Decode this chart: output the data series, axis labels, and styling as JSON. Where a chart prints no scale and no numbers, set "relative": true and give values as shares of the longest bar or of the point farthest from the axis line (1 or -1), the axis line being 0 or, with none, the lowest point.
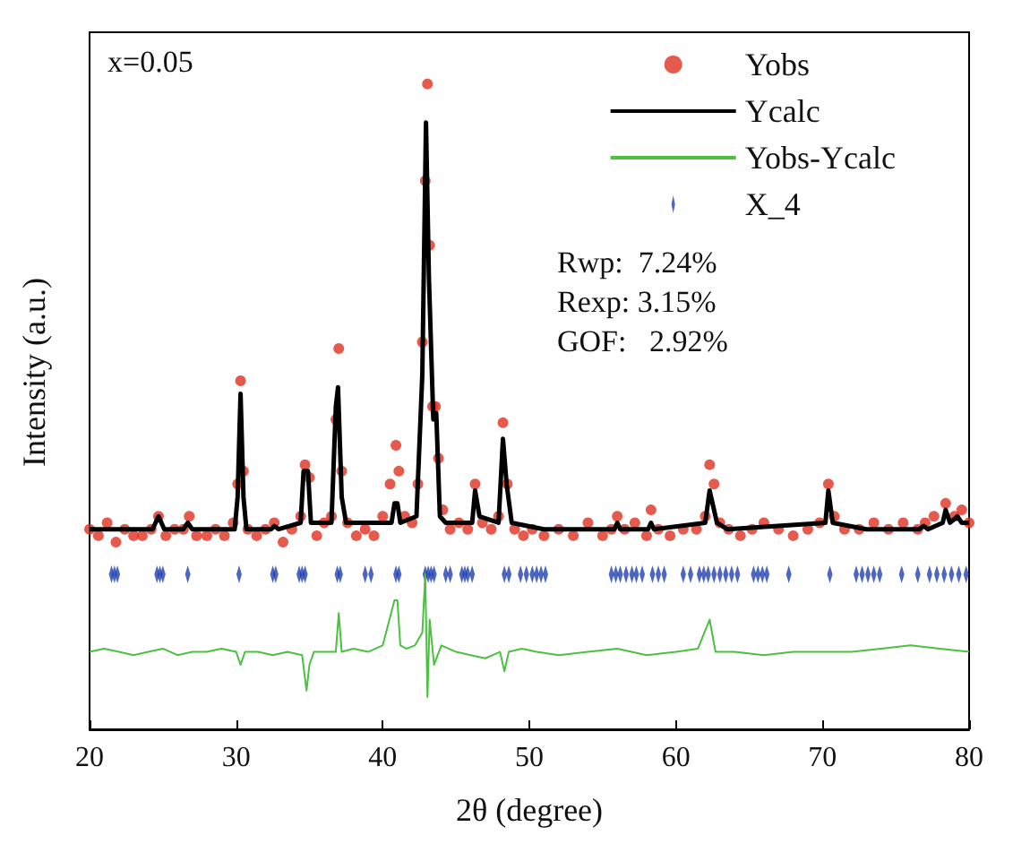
{
  "chart_data": {
    "type": "line",
    "relative": true,
    "xlabel": "2θ (degree)",
    "ylabel": "Intensity (a.u.)",
    "xlim": [
      20,
      80
    ],
    "xticks": [
      20,
      30,
      40,
      50,
      60,
      70,
      80
    ],
    "legend": "top right",
    "grid": false,
    "annotations": [
      "x=0.05",
      "Rwp:  7.24%",
      "Rexp: 3.15%",
      "GOF:   2.92%"
    ],
    "series": [
      {
        "name": "Yobs",
        "type": "scatter",
        "marker": "circle",
        "color": "#e03020",
        "x": [
          20,
          20.6,
          21.2,
          21.8,
          22.4,
          23,
          23.6,
          24.2,
          24.7,
          25.2,
          25.8,
          26.4,
          26.8,
          27.3,
          28,
          28.6,
          29.2,
          29.8,
          30.1,
          30.3,
          30.5,
          30.8,
          31.4,
          32,
          32.6,
          33.2,
          33.8,
          34.4,
          34.7,
          35,
          35.5,
          36,
          36.5,
          36.8,
          37,
          37.2,
          37.6,
          38.2,
          38.8,
          39.4,
          40,
          40.5,
          40.9,
          41.1,
          41.5,
          42,
          42.4,
          42.7,
          42.9,
          43.05,
          43.2,
          43.4,
          43.6,
          43.8,
          44.1,
          44.6,
          45.2,
          45.8,
          46.3,
          46.8,
          47.4,
          47.9,
          48.2,
          48.5,
          49,
          49.6,
          50.2,
          51,
          52,
          53,
          54,
          55,
          55.6,
          56,
          56.5,
          57.2,
          58,
          58.3,
          58.8,
          59.6,
          60.5,
          61.4,
          62,
          62.3,
          62.6,
          63,
          63.6,
          64.4,
          65.2,
          66,
          67,
          68,
          69,
          69.8,
          70.4,
          70.8,
          71.5,
          72.5,
          73.5,
          74.5,
          75.5,
          76.5,
          77,
          77.6,
          78.4,
          79,
          79.5,
          80
        ],
        "values": [
          0.31,
          0.3,
          0.32,
          0.29,
          0.31,
          0.3,
          0.3,
          0.31,
          0.33,
          0.3,
          0.31,
          0.31,
          0.33,
          0.3,
          0.3,
          0.31,
          0.3,
          0.32,
          0.38,
          0.54,
          0.4,
          0.31,
          0.3,
          0.31,
          0.32,
          0.29,
          0.31,
          0.33,
          0.41,
          0.39,
          0.3,
          0.32,
          0.33,
          0.48,
          0.59,
          0.4,
          0.32,
          0.3,
          0.31,
          0.3,
          0.33,
          0.38,
          0.44,
          0.4,
          0.33,
          0.32,
          0.38,
          0.6,
          0.85,
          1.0,
          0.75,
          0.5,
          0.5,
          0.42,
          0.34,
          0.31,
          0.32,
          0.31,
          0.38,
          0.32,
          0.31,
          0.33,
          0.475,
          0.38,
          0.31,
          0.3,
          0.31,
          0.3,
          0.31,
          0.3,
          0.32,
          0.3,
          0.31,
          0.33,
          0.31,
          0.32,
          0.3,
          0.34,
          0.31,
          0.3,
          0.31,
          0.31,
          0.33,
          0.41,
          0.38,
          0.32,
          0.31,
          0.3,
          0.31,
          0.32,
          0.31,
          0.3,
          0.31,
          0.32,
          0.38,
          0.33,
          0.31,
          0.31,
          0.32,
          0.31,
          0.32,
          0.31,
          0.32,
          0.33,
          0.35,
          0.33,
          0.34,
          0.32
        ]
      },
      {
        "name": "Ycalc",
        "marker": "none",
        "color": "#000000",
        "x": [
          20,
          24.3,
          24.7,
          25.1,
          26.4,
          26.7,
          27,
          29.9,
          30.1,
          30.3,
          30.5,
          30.7,
          32.4,
          32.6,
          32.9,
          34.4,
          34.6,
          34.9,
          35.1,
          36.5,
          36.8,
          36.95,
          37.2,
          37.5,
          40.6,
          40.8,
          41,
          41.2,
          42.3,
          42.7,
          42.95,
          43.15,
          43.45,
          43.65,
          43.9,
          44.3,
          46.1,
          46.3,
          46.6,
          47.9,
          48.2,
          48.45,
          48.8,
          51,
          55.8,
          56,
          56.2,
          58.1,
          58.3,
          58.5,
          62,
          62.3,
          62.5,
          62.8,
          63.5,
          70.2,
          70.4,
          70.7,
          73,
          76.6,
          76.9,
          77.2,
          78.2,
          78.4,
          78.7,
          79.2,
          79.5,
          80
        ],
        "values": [
          0.31,
          0.31,
          0.33,
          0.31,
          0.31,
          0.32,
          0.31,
          0.31,
          0.36,
          0.52,
          0.36,
          0.31,
          0.31,
          0.315,
          0.31,
          0.32,
          0.4,
          0.4,
          0.32,
          0.32,
          0.5,
          0.53,
          0.36,
          0.32,
          0.32,
          0.35,
          0.35,
          0.32,
          0.33,
          0.55,
          0.94,
          0.7,
          0.48,
          0.49,
          0.33,
          0.32,
          0.32,
          0.37,
          0.33,
          0.32,
          0.45,
          0.38,
          0.32,
          0.31,
          0.31,
          0.32,
          0.31,
          0.31,
          0.32,
          0.31,
          0.32,
          0.37,
          0.35,
          0.32,
          0.31,
          0.32,
          0.37,
          0.32,
          0.31,
          0.31,
          0.315,
          0.31,
          0.32,
          0.34,
          0.32,
          0.33,
          0.32,
          0.32
        ]
      },
      {
        "name": "Yobs-Ycalc",
        "marker": "none",
        "color": "#4cc040",
        "x": [
          20,
          21,
          22,
          23,
          24,
          25,
          26,
          27,
          28,
          29,
          30,
          30.3,
          30.6,
          31.5,
          32.5,
          33.5,
          34.5,
          34.8,
          35,
          35.3,
          36,
          36.8,
          37,
          37.2,
          38,
          39,
          40,
          40.8,
          41,
          41.2,
          41.6,
          42.2,
          42.7,
          42.9,
          43.05,
          43.2,
          43.5,
          44,
          45,
          46,
          47,
          48,
          48.3,
          48.6,
          49.5,
          50.5,
          52,
          54,
          56,
          58,
          60,
          61.5,
          62.3,
          62.7,
          64,
          66,
          68,
          70,
          72,
          74,
          76,
          78,
          80
        ],
        "values": [
          0.12,
          0.125,
          0.12,
          0.115,
          0.12,
          0.125,
          0.115,
          0.12,
          0.12,
          0.125,
          0.12,
          0.1,
          0.12,
          0.12,
          0.115,
          0.12,
          0.115,
          0.06,
          0.1,
          0.12,
          0.12,
          0.12,
          0.18,
          0.12,
          0.125,
          0.12,
          0.13,
          0.2,
          0.2,
          0.13,
          0.125,
          0.13,
          0.15,
          0.24,
          0.05,
          0.17,
          0.1,
          0.13,
          0.12,
          0.115,
          0.11,
          0.12,
          0.09,
          0.12,
          0.125,
          0.12,
          0.115,
          0.12,
          0.125,
          0.115,
          0.12,
          0.125,
          0.17,
          0.12,
          0.12,
          0.115,
          0.12,
          0.12,
          0.12,
          0.125,
          0.13,
          0.125,
          0.12
        ]
      },
      {
        "name": "X_4",
        "type": "scatter",
        "marker": "diamond",
        "color": "#2040b0",
        "x": [
          21.5,
          21.7,
          21.9,
          24.6,
          24.8,
          25,
          26.7,
          30.2,
          32.5,
          32.7,
          34.3,
          34.5,
          34.7,
          36.9,
          37.1,
          38.8,
          39.2,
          40.9,
          41.1,
          42.9,
          43.1,
          43.3,
          43.5,
          44.3,
          44.6,
          45.4,
          45.6,
          45.8,
          46.1,
          48.3,
          48.6,
          49.4,
          49.8,
          50.2,
          50.5,
          50.8,
          51.1,
          55.6,
          55.9,
          56.2,
          56.6,
          57,
          57.3,
          57.7,
          58.4,
          58.8,
          59.2,
          60.5,
          61,
          61.6,
          61.9,
          62.2,
          62.6,
          63,
          63.4,
          63.8,
          64.2,
          65.3,
          65.6,
          65.9,
          66.2,
          67.7,
          70.5,
          72.3,
          72.7,
          73.1,
          73.5,
          73.9,
          75.4,
          76.5,
          77.3,
          77.8,
          78.3,
          78.8,
          79.3,
          79.8
        ],
        "values": [
          0.24,
          0.24,
          0.24,
          0.24,
          0.24,
          0.24,
          0.24,
          0.24,
          0.24,
          0.24,
          0.24,
          0.24,
          0.24,
          0.24,
          0.24,
          0.24,
          0.24,
          0.24,
          0.24,
          0.24,
          0.24,
          0.24,
          0.24,
          0.24,
          0.24,
          0.24,
          0.24,
          0.24,
          0.24,
          0.24,
          0.24,
          0.24,
          0.24,
          0.24,
          0.24,
          0.24,
          0.24,
          0.24,
          0.24,
          0.24,
          0.24,
          0.24,
          0.24,
          0.24,
          0.24,
          0.24,
          0.24,
          0.24,
          0.24,
          0.24,
          0.24,
          0.24,
          0.24,
          0.24,
          0.24,
          0.24,
          0.24,
          0.24,
          0.24,
          0.24,
          0.24,
          0.24,
          0.24,
          0.24,
          0.24,
          0.24,
          0.24,
          0.24,
          0.24,
          0.24,
          0.24,
          0.24,
          0.24,
          0.24,
          0.24,
          0.24
        ]
      }
    ]
  }
}
